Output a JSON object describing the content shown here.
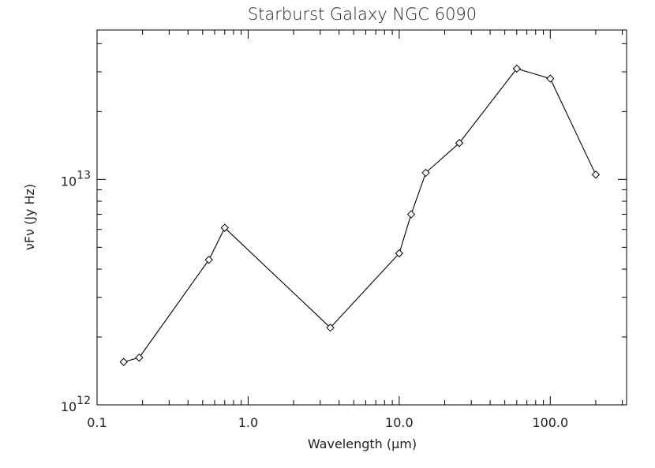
{
  "chart_data": {
    "type": "line",
    "title": "Starburst Galaxy NGC 6090",
    "xlabel": "Wavelength (μm)",
    "ylabel": "νFν (Jy Hz)",
    "x_scale": "log",
    "y_scale": "log",
    "xlim": [
      0.1,
      320
    ],
    "ylim": [
      1000000000000.0,
      46000000000000.0
    ],
    "x_ticks": [
      {
        "value": 0.1,
        "label": "0.1"
      },
      {
        "value": 1.0,
        "label": "1.0"
      },
      {
        "value": 10.0,
        "label": "10.0"
      },
      {
        "value": 100.0,
        "label": "100.0"
      }
    ],
    "y_ticks": [
      {
        "value": 1000000000000.0,
        "base": "10",
        "exp": "12"
      },
      {
        "value": 10000000000000.0,
        "base": "10",
        "exp": "13"
      }
    ],
    "marker": "diamond",
    "grid": false,
    "series": [
      {
        "x": [
          0.15,
          0.19,
          0.55,
          0.7,
          3.5,
          10.0,
          12.0,
          15.0,
          25.0,
          60.0,
          100.0,
          200.0
        ],
        "y": [
          1550000000000.0,
          1620000000000.0,
          4400000000000.0,
          6100000000000.0,
          2200000000000.0,
          4700000000000.0,
          7000000000000.0,
          10700000000000.0,
          14500000000000.0,
          31000000000000.0,
          28000000000000.0,
          10500000000000.0
        ]
      }
    ]
  }
}
